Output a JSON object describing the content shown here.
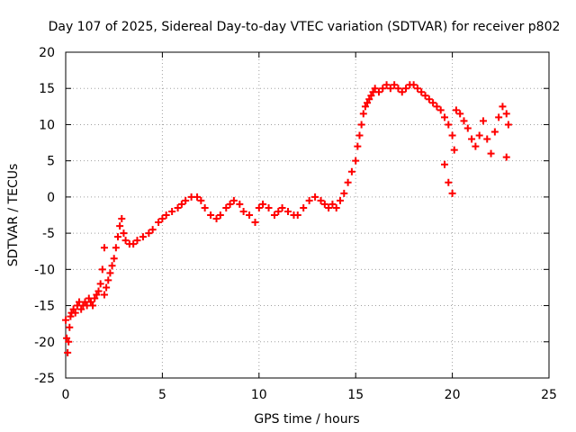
{
  "chart_data": {
    "type": "scatter",
    "title": "Day 107 of 2025, Sidereal Day-to-day VTEC variation (SDTVAR) for receiver p802",
    "xlabel": "GPS time / hours",
    "ylabel": "SDTVAR / TECUs",
    "xlim": [
      0,
      25
    ],
    "ylim": [
      -25,
      20
    ],
    "xticks": [
      "0",
      "5",
      "10",
      "15",
      "20",
      "25"
    ],
    "yticks": [
      "-25",
      "-20",
      "-15",
      "-10",
      "-5",
      "0",
      "5",
      "10",
      "15",
      "20"
    ],
    "grid": true,
    "marker": "+",
    "color": "#ff0000",
    "series": [
      {
        "name": "SDTVAR",
        "points": [
          [
            0.0,
            -17.0
          ],
          [
            0.05,
            -19.5
          ],
          [
            0.1,
            -21.5
          ],
          [
            0.15,
            -20.0
          ],
          [
            0.2,
            -18.0
          ],
          [
            0.25,
            -16.5
          ],
          [
            0.3,
            -16.0
          ],
          [
            0.4,
            -15.5
          ],
          [
            0.5,
            -16.0
          ],
          [
            0.6,
            -15.0
          ],
          [
            0.7,
            -14.5
          ],
          [
            0.8,
            -15.5
          ],
          [
            0.9,
            -15.0
          ],
          [
            1.0,
            -14.5
          ],
          [
            1.1,
            -15.0
          ],
          [
            1.2,
            -14.0
          ],
          [
            1.3,
            -14.5
          ],
          [
            1.4,
            -15.0
          ],
          [
            1.5,
            -14.0
          ],
          [
            1.6,
            -13.5
          ],
          [
            1.7,
            -13.0
          ],
          [
            1.8,
            -12.0
          ],
          [
            1.9,
            -10.0
          ],
          [
            2.0,
            -7.0
          ],
          [
            2.0,
            -13.5
          ],
          [
            2.1,
            -12.5
          ],
          [
            2.2,
            -11.5
          ],
          [
            2.3,
            -10.5
          ],
          [
            2.4,
            -9.5
          ],
          [
            2.5,
            -8.5
          ],
          [
            2.6,
            -7.0
          ],
          [
            2.7,
            -5.5
          ],
          [
            2.8,
            -4.0
          ],
          [
            2.9,
            -3.0
          ],
          [
            3.0,
            -5.0
          ],
          [
            3.1,
            -6.0
          ],
          [
            3.3,
            -6.5
          ],
          [
            3.5,
            -6.5
          ],
          [
            3.7,
            -6.0
          ],
          [
            4.0,
            -5.5
          ],
          [
            4.3,
            -5.0
          ],
          [
            4.5,
            -4.5
          ],
          [
            4.8,
            -3.5
          ],
          [
            5.0,
            -3.0
          ],
          [
            5.2,
            -2.5
          ],
          [
            5.5,
            -2.0
          ],
          [
            5.8,
            -1.5
          ],
          [
            6.0,
            -1.0
          ],
          [
            6.2,
            -0.5
          ],
          [
            6.5,
            0.0
          ],
          [
            6.8,
            0.0
          ],
          [
            7.0,
            -0.5
          ],
          [
            7.2,
            -1.5
          ],
          [
            7.5,
            -2.5
          ],
          [
            7.8,
            -3.0
          ],
          [
            8.0,
            -2.5
          ],
          [
            8.3,
            -1.5
          ],
          [
            8.5,
            -1.0
          ],
          [
            8.7,
            -0.5
          ],
          [
            9.0,
            -1.0
          ],
          [
            9.2,
            -2.0
          ],
          [
            9.5,
            -2.5
          ],
          [
            9.8,
            -3.5
          ],
          [
            10.0,
            -1.5
          ],
          [
            10.2,
            -1.0
          ],
          [
            10.5,
            -1.5
          ],
          [
            10.8,
            -2.5
          ],
          [
            11.0,
            -2.0
          ],
          [
            11.2,
            -1.5
          ],
          [
            11.5,
            -2.0
          ],
          [
            11.8,
            -2.5
          ],
          [
            12.0,
            -2.5
          ],
          [
            12.3,
            -1.5
          ],
          [
            12.6,
            -0.5
          ],
          [
            12.9,
            0.0
          ],
          [
            13.2,
            -0.5
          ],
          [
            13.4,
            -1.0
          ],
          [
            13.6,
            -1.5
          ],
          [
            13.8,
            -1.0
          ],
          [
            14.0,
            -1.5
          ],
          [
            14.2,
            -0.5
          ],
          [
            14.4,
            0.5
          ],
          [
            14.6,
            2.0
          ],
          [
            14.8,
            3.5
          ],
          [
            15.0,
            5.0
          ],
          [
            15.1,
            7.0
          ],
          [
            15.2,
            8.5
          ],
          [
            15.3,
            10.0
          ],
          [
            15.4,
            11.5
          ],
          [
            15.5,
            12.5
          ],
          [
            15.6,
            13.0
          ],
          [
            15.7,
            13.5
          ],
          [
            15.8,
            14.0
          ],
          [
            15.9,
            14.5
          ],
          [
            16.0,
            15.0
          ],
          [
            16.2,
            14.5
          ],
          [
            16.4,
            15.0
          ],
          [
            16.6,
            15.5
          ],
          [
            16.8,
            15.0
          ],
          [
            17.0,
            15.5
          ],
          [
            17.2,
            15.0
          ],
          [
            17.4,
            14.5
          ],
          [
            17.6,
            15.0
          ],
          [
            17.8,
            15.5
          ],
          [
            18.0,
            15.5
          ],
          [
            18.2,
            15.0
          ],
          [
            18.4,
            14.5
          ],
          [
            18.6,
            14.0
          ],
          [
            18.8,
            13.5
          ],
          [
            19.0,
            13.0
          ],
          [
            19.2,
            12.5
          ],
          [
            19.4,
            12.0
          ],
          [
            19.6,
            11.0
          ],
          [
            19.8,
            10.0
          ],
          [
            20.0,
            8.5
          ],
          [
            20.1,
            6.5
          ],
          [
            19.6,
            4.5
          ],
          [
            19.8,
            2.0
          ],
          [
            20.0,
            0.5
          ],
          [
            20.2,
            12.0
          ],
          [
            20.4,
            11.5
          ],
          [
            20.6,
            10.5
          ],
          [
            20.8,
            9.5
          ],
          [
            21.0,
            8.0
          ],
          [
            21.2,
            7.0
          ],
          [
            21.4,
            8.5
          ],
          [
            21.6,
            10.5
          ],
          [
            21.8,
            8.0
          ],
          [
            22.0,
            6.0
          ],
          [
            22.2,
            9.0
          ],
          [
            22.4,
            11.0
          ],
          [
            22.6,
            12.5
          ],
          [
            22.8,
            11.5
          ],
          [
            22.9,
            10.0
          ],
          [
            22.8,
            5.5
          ]
        ]
      }
    ]
  }
}
